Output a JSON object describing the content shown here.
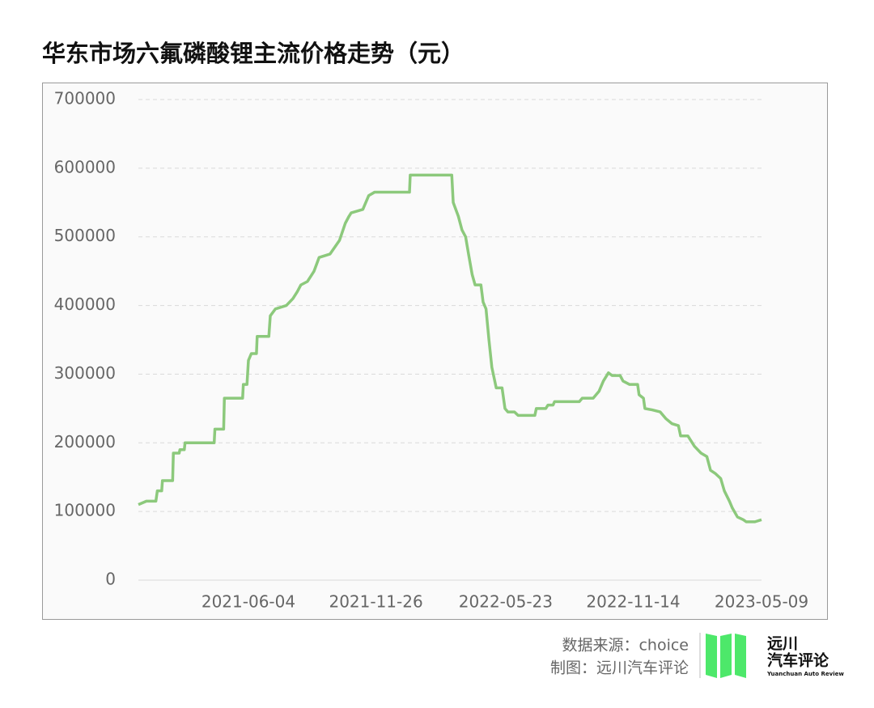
{
  "chart_data": {
    "type": "line",
    "title": "华东市场六氟磷酸锂主流价格走势（元）",
    "x": [
      "2021-01-04",
      "2021-01-15",
      "2021-01-28",
      "2021-01-30",
      "2021-02-05",
      "2021-02-06",
      "2021-02-20",
      "2021-02-21",
      "2021-03-01",
      "2021-03-02",
      "2021-03-08",
      "2021-03-09",
      "2021-04-18",
      "2021-04-19",
      "2021-05-01",
      "2021-05-02",
      "2021-05-27",
      "2021-05-28",
      "2021-06-02",
      "2021-06-04",
      "2021-06-08",
      "2021-06-15",
      "2021-06-16",
      "2021-07-02",
      "2021-07-04",
      "2021-07-11",
      "2021-07-26",
      "2021-08-04",
      "2021-08-10",
      "2021-08-15",
      "2021-08-24",
      "2021-09-02",
      "2021-09-09",
      "2021-09-24",
      "2021-10-07",
      "2021-10-15",
      "2021-10-20",
      "2021-10-23",
      "2021-11-08",
      "2021-11-16",
      "2021-11-24",
      "2022-01-11",
      "2022-01-12",
      "2022-03-10",
      "2022-03-12",
      "2022-03-19",
      "2022-03-24",
      "2022-03-29",
      "2022-04-02",
      "2022-04-07",
      "2022-04-11",
      "2022-04-19",
      "2022-04-22",
      "2022-04-26",
      "2022-04-30",
      "2022-05-04",
      "2022-05-10",
      "2022-05-18",
      "2022-05-22",
      "2022-05-26",
      "2022-06-04",
      "2022-06-09",
      "2022-07-02",
      "2022-07-04",
      "2022-07-17",
      "2022-07-20",
      "2022-07-27",
      "2022-07-29",
      "2022-09-01",
      "2022-09-05",
      "2022-09-20",
      "2022-09-28",
      "2022-10-04",
      "2022-10-11",
      "2022-10-16",
      "2022-10-27",
      "2022-10-31",
      "2022-11-09",
      "2022-11-20",
      "2022-11-22",
      "2022-11-28",
      "2022-11-30",
      "2022-12-10",
      "2022-12-21",
      "2022-12-29",
      "2023-01-06",
      "2023-01-15",
      "2023-01-18",
      "2023-01-28",
      "2023-02-06",
      "2023-02-15",
      "2023-02-23",
      "2023-02-28",
      "2023-03-07",
      "2023-03-14",
      "2023-03-19",
      "2023-03-26",
      "2023-03-30",
      "2023-04-06",
      "2023-04-14",
      "2023-04-18",
      "2023-04-30",
      "2023-05-09"
    ],
    "series": [
      {
        "name": "六氟磷酸锂",
        "color": "#8cc97c",
        "values": [
          110000,
          115000,
          115000,
          130000,
          130000,
          145000,
          145000,
          185000,
          185000,
          190000,
          190000,
          200000,
          200000,
          220000,
          220000,
          265000,
          265000,
          285000,
          285000,
          320000,
          330000,
          330000,
          355000,
          355000,
          385000,
          395000,
          400000,
          410000,
          420000,
          430000,
          435000,
          450000,
          470000,
          475000,
          495000,
          520000,
          530000,
          535000,
          540000,
          560000,
          565000,
          565000,
          590000,
          590000,
          550000,
          530000,
          510000,
          500000,
          475000,
          445000,
          430000,
          430000,
          405000,
          395000,
          350000,
          310000,
          280000,
          280000,
          250000,
          245000,
          245000,
          240000,
          240000,
          250000,
          250000,
          255000,
          255000,
          260000,
          260000,
          265000,
          265000,
          275000,
          290000,
          302000,
          298000,
          298000,
          290000,
          285000,
          285000,
          270000,
          265000,
          250000,
          248000,
          245000,
          235000,
          228000,
          225000,
          210000,
          210000,
          195000,
          185000,
          180000,
          160000,
          155000,
          148000,
          130000,
          115000,
          105000,
          92000,
          88000,
          85000,
          85000,
          88000
        ]
      }
    ],
    "xlim": [
      "2021-01-04",
      "2023-05-09"
    ],
    "xticks": [
      "2021-06-04",
      "2021-11-26",
      "2022-05-23",
      "2022-11-14",
      "2023-05-09"
    ],
    "ylim": [
      0,
      700000
    ],
    "yticks": [
      0,
      100000,
      200000,
      300000,
      400000,
      500000,
      600000,
      700000
    ],
    "grid": true
  },
  "footer": {
    "source": "数据来源：choice",
    "credit": "制图：远川汽车评论",
    "logo_line1": "远川",
    "logo_line2": "汽车评论",
    "logo_en": "Yuanchuan Auto Review"
  }
}
